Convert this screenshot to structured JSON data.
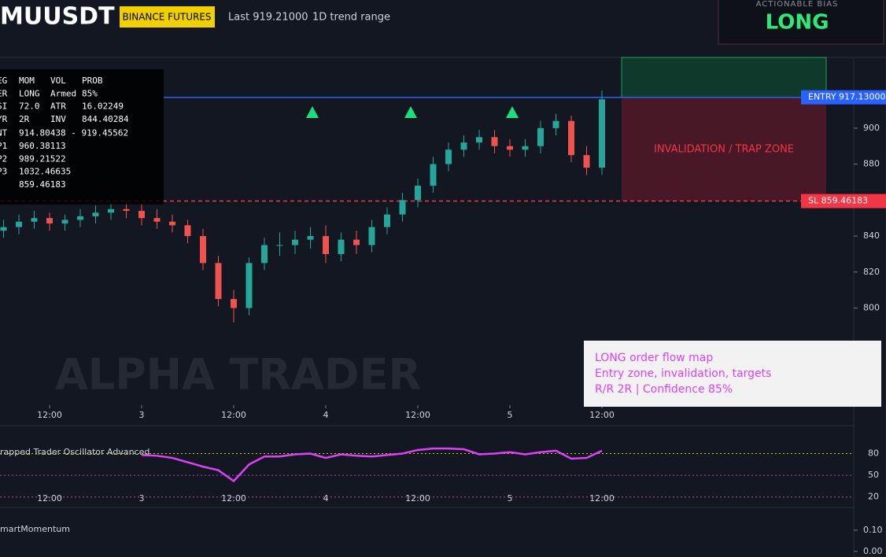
{
  "header": {
    "symbol": "MUUSDT",
    "exchange": "BINANCE FUTURES",
    "last": "Last 919.21000",
    "range": "1D trend range",
    "bias_label": "ACTIONABLE BIAS",
    "bias": "LONG"
  },
  "panel": {
    "rows": [
      [
        "EG",
        "MOM",
        "VOL",
        "PROB"
      ],
      [
        "ER",
        "LONG",
        "Armed",
        "85%"
      ],
      [
        "SI",
        "72.0",
        "ATR",
        "16.02249"
      ],
      [
        "YR",
        "2R",
        "INV",
        "844.40284"
      ],
      [
        "NT",
        "914.80438 - 919.45562"
      ],
      [
        "P1",
        "960.38113"
      ],
      [
        "P2",
        "989.21522"
      ],
      [
        "P3",
        "1032.46635"
      ],
      [
        "859.46183"
      ]
    ]
  },
  "zone_label": "INVALIDATION / TRAP ZONE",
  "watermark": "ALPHA TRADER",
  "note": [
    "LONG order flow map",
    "Entry zone, invalidation, targets",
    "R/R 2R | Confidence 85%"
  ],
  "chart_data": [
    {
      "type": "candlestick",
      "up_color": "#26a69a",
      "down_color": "#ef5350",
      "x": [
        -6,
        -4,
        -2,
        0,
        2,
        4,
        6,
        8,
        10,
        12,
        14,
        16,
        18,
        20,
        22,
        24,
        26,
        28,
        30,
        32,
        34,
        36,
        38,
        40,
        42,
        44,
        46,
        48,
        50,
        52,
        54,
        56,
        58,
        60,
        62,
        64,
        66,
        68,
        70,
        72
      ],
      "open": [
        843,
        845,
        848,
        850,
        847,
        849,
        851,
        853,
        855,
        854,
        850,
        848,
        846,
        840,
        825,
        805,
        800,
        825,
        835,
        835,
        838,
        840,
        830,
        838,
        835,
        845,
        852,
        860,
        868,
        880,
        888,
        892,
        895,
        890,
        888,
        890,
        900,
        904,
        885,
        878
      ],
      "high": [
        849,
        852,
        854,
        853,
        852,
        855,
        857,
        859,
        860,
        858,
        855,
        852,
        849,
        844,
        829,
        810,
        828,
        839,
        842,
        843,
        845,
        846,
        842,
        843,
        849,
        856,
        864,
        872,
        884,
        892,
        896,
        899,
        899,
        894,
        894,
        904,
        908,
        907,
        890,
        921
      ],
      "low": [
        839,
        841,
        844,
        843,
        843,
        845,
        847,
        849,
        850,
        846,
        844,
        842,
        836,
        821,
        801,
        792,
        796,
        821,
        829,
        830,
        833,
        825,
        826,
        830,
        831,
        841,
        848,
        856,
        864,
        876,
        884,
        888,
        886,
        884,
        884,
        886,
        896,
        881,
        874,
        874
      ],
      "close": [
        845,
        848,
        850,
        847,
        849,
        851,
        853,
        855,
        854,
        850,
        848,
        846,
        840,
        825,
        805,
        800,
        825,
        835,
        835,
        838,
        840,
        830,
        838,
        835,
        845,
        852,
        860,
        868,
        880,
        888,
        892,
        895,
        890,
        888,
        890,
        900,
        904,
        885,
        878,
        916
      ],
      "ylim": [
        746,
        939.3
      ],
      "yticks": [
        800,
        820,
        840,
        880,
        900
      ],
      "xticks": [
        {
          "value": 0,
          "label": "12:00"
        },
        {
          "value": 12,
          "label": "3"
        },
        {
          "value": 24,
          "label": "12:00"
        },
        {
          "value": 36,
          "label": "4"
        },
        {
          "value": 48,
          "label": "12:00"
        },
        {
          "value": 60,
          "label": "5"
        },
        {
          "value": 72,
          "label": "12:00"
        }
      ],
      "entry": {
        "value": 917.13,
        "label": "ENTRY 917.13000",
        "color": "#2962ff"
      },
      "stop": {
        "value": 859.46183,
        "label": "SL 859.46183",
        "color": "#f23645"
      }
    },
    {
      "type": "line",
      "title": "rapped Trader Oscillator Advanced",
      "color": "#e040fb",
      "x": [
        12,
        14,
        16,
        18,
        20,
        22,
        24,
        26,
        28,
        30,
        32,
        34,
        36,
        38,
        40,
        42,
        44,
        46,
        48,
        50,
        52,
        54,
        56,
        58,
        60,
        62,
        64,
        66,
        68,
        70,
        72
      ],
      "values": [
        78,
        77,
        74,
        68,
        62,
        57,
        42,
        65,
        76,
        76,
        79,
        80,
        74,
        79,
        77,
        76,
        78,
        80,
        85,
        87,
        87,
        86,
        79,
        80,
        82,
        79,
        82,
        84,
        73,
        74,
        84
      ],
      "ylim": [
        11,
        98
      ],
      "yticks": [
        20,
        50,
        80
      ]
    },
    {
      "type": "line",
      "title": "martMomentum",
      "yticks": [
        {
          "value": 0.1,
          "label": "0.10"
        },
        {
          "value": 0,
          "label": "0.00"
        }
      ]
    }
  ]
}
